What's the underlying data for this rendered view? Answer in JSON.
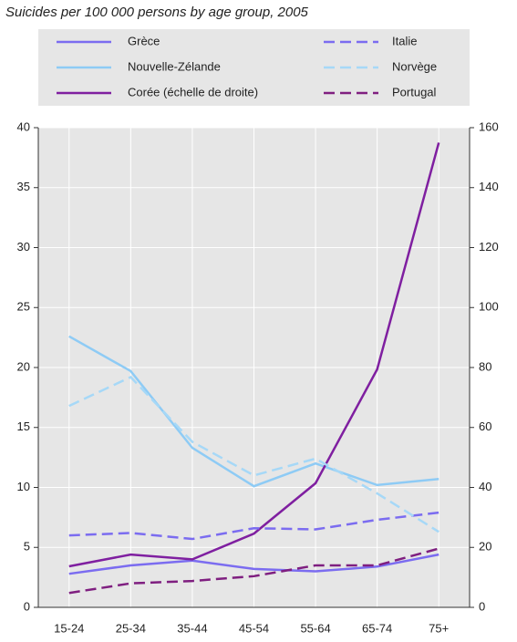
{
  "chart_data": {
    "type": "line",
    "title": "Suicides per 100 000 persons by age group, 2005",
    "categories": [
      "15-24",
      "25-34",
      "35-44",
      "45-54",
      "55-64",
      "65-74",
      "75+"
    ],
    "series": [
      {
        "name": "Grèce",
        "color": "#7b6cf0",
        "style": "solid",
        "values": [
          2.8,
          3.5,
          3.9,
          3.2,
          3.0,
          3.4,
          4.4
        ]
      },
      {
        "name": "Nouvelle-Zélande",
        "color": "#8ecbf5",
        "style": "solid",
        "values": [
          22.6,
          19.7,
          13.3,
          10.1,
          12.0,
          10.2,
          10.7
        ]
      },
      {
        "name": "Corée (échelle de droite)",
        "color": "#7f1fa0",
        "style": "solid",
        "axis": "y2",
        "values": [
          13.7,
          17.6,
          16,
          24.6,
          41.4,
          79.4,
          155
        ]
      },
      {
        "name": "Italie",
        "color": "#7b6cf0",
        "style": "dashed",
        "values": [
          6.0,
          6.2,
          5.7,
          6.6,
          6.5,
          7.3,
          7.9
        ]
      },
      {
        "name": "Norvège",
        "color": "#a6d8f7",
        "style": "dashed",
        "values": [
          16.8,
          19.2,
          13.8,
          11.0,
          12.4,
          9.5,
          6.3
        ]
      },
      {
        "name": "Portugal",
        "color": "#7f1f80",
        "style": "dashed",
        "values": [
          1.2,
          2.0,
          2.2,
          2.6,
          3.5,
          3.5,
          4.9
        ]
      }
    ],
    "ylim": [
      0,
      40
    ],
    "yticks": [
      0,
      5,
      10,
      15,
      20,
      25,
      30,
      35,
      40
    ],
    "y2lim": [
      0,
      160
    ],
    "y2ticks": [
      0,
      20,
      40,
      60,
      80,
      100,
      120,
      140,
      160
    ],
    "grid": true
  }
}
